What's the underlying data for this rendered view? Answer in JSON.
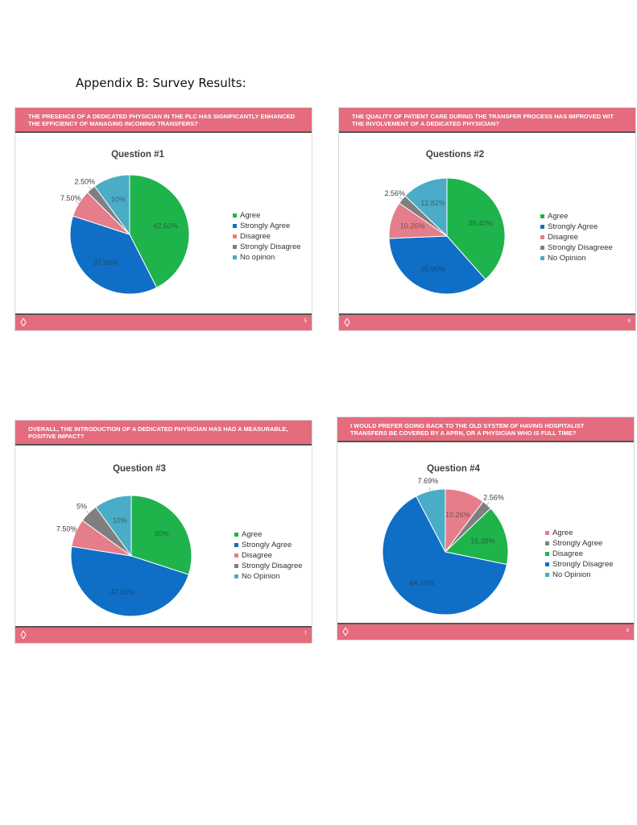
{
  "page": {
    "title": "Appendix B: Survey Results:"
  },
  "chart_data": [
    {
      "type": "pie",
      "header": "THE PRESENCE OF A DEDICATED PHYSICIAN IN THE PLC HAS SIGNIFICANTLY ENHANCED THE EFFICIENCY OF MANAGING INCOMING TRANSFERS?",
      "title": "Question #1",
      "slide_number": "5",
      "categories": [
        "Agree",
        "Strongly Agree",
        "Disagree",
        "Strongly Disagree",
        "No opinon"
      ],
      "values": [
        42.5,
        37.5,
        7.5,
        2.5,
        10
      ],
      "labels": [
        "42.50%",
        "37.50%",
        "7.50%",
        "2.50%",
        "10%"
      ],
      "colors": [
        "#1fb34c",
        "#0f6fc6",
        "#e57d8a",
        "#7f7f7f",
        "#4aacc6"
      ]
    },
    {
      "type": "pie",
      "header": "THE QUALITY OF PATIENT CARE DURING THE TRANSFER PROCESS HAS IMPROVED WIT THE INVOLVEMENT OF A DEDICATED PHYSICIAN?",
      "title": "Questions #2",
      "slide_number": "6",
      "categories": [
        "Agree",
        "Strongly Agree",
        "Disagree",
        "Strongly Disagreee",
        "No Opinion"
      ],
      "values": [
        38.4,
        35.9,
        10.26,
        2.56,
        12.82
      ],
      "labels": [
        "38.40%",
        "35.90%",
        "10.26%",
        "2.56%",
        "12.82%"
      ],
      "colors": [
        "#1fb34c",
        "#0f6fc6",
        "#e57d8a",
        "#7f7f7f",
        "#4aacc6"
      ]
    },
    {
      "type": "pie",
      "header": "OVERALL, THE INTRODUCTION OF A DEDICATED PHYSICIAN HAS HAD A MEASURABLE, POSITIVE IMPACT?",
      "title": "Question #3",
      "slide_number": "7",
      "categories": [
        "Agree",
        "Strongly Agree",
        "Disagree",
        "Strongly Disagree",
        "No Opinion"
      ],
      "values": [
        30,
        47.5,
        7.5,
        5,
        10
      ],
      "labels": [
        "30%",
        "47.50%",
        "7.50%",
        "5%",
        "10%"
      ],
      "colors": [
        "#1fb34c",
        "#0f6fc6",
        "#e57d8a",
        "#7f7f7f",
        "#4aacc6"
      ]
    },
    {
      "type": "pie",
      "header": "I WOULD PREFER GOING BACK TO THE OLD SYSTEM OF HAVING HOSPITALIST TRANSFERS BE COVERED BY A APRN, OR A PHYSICIAN WHO IS FULL TIME?",
      "title": "Question #4",
      "slide_number": "8",
      "categories": [
        "Agree",
        "Strongly Agree",
        "Disagree",
        "Strongly Disagree",
        "No Opinion"
      ],
      "values": [
        10.26,
        2.56,
        15.38,
        64.1,
        7.69
      ],
      "labels": [
        "10.26%",
        "2.56%",
        "15.38%",
        "64.10%",
        "7.69%"
      ],
      "colors": [
        "#e57d8a",
        "#7f7f7f",
        "#1fb34c",
        "#0f6fc6",
        "#4aacc6"
      ]
    }
  ]
}
